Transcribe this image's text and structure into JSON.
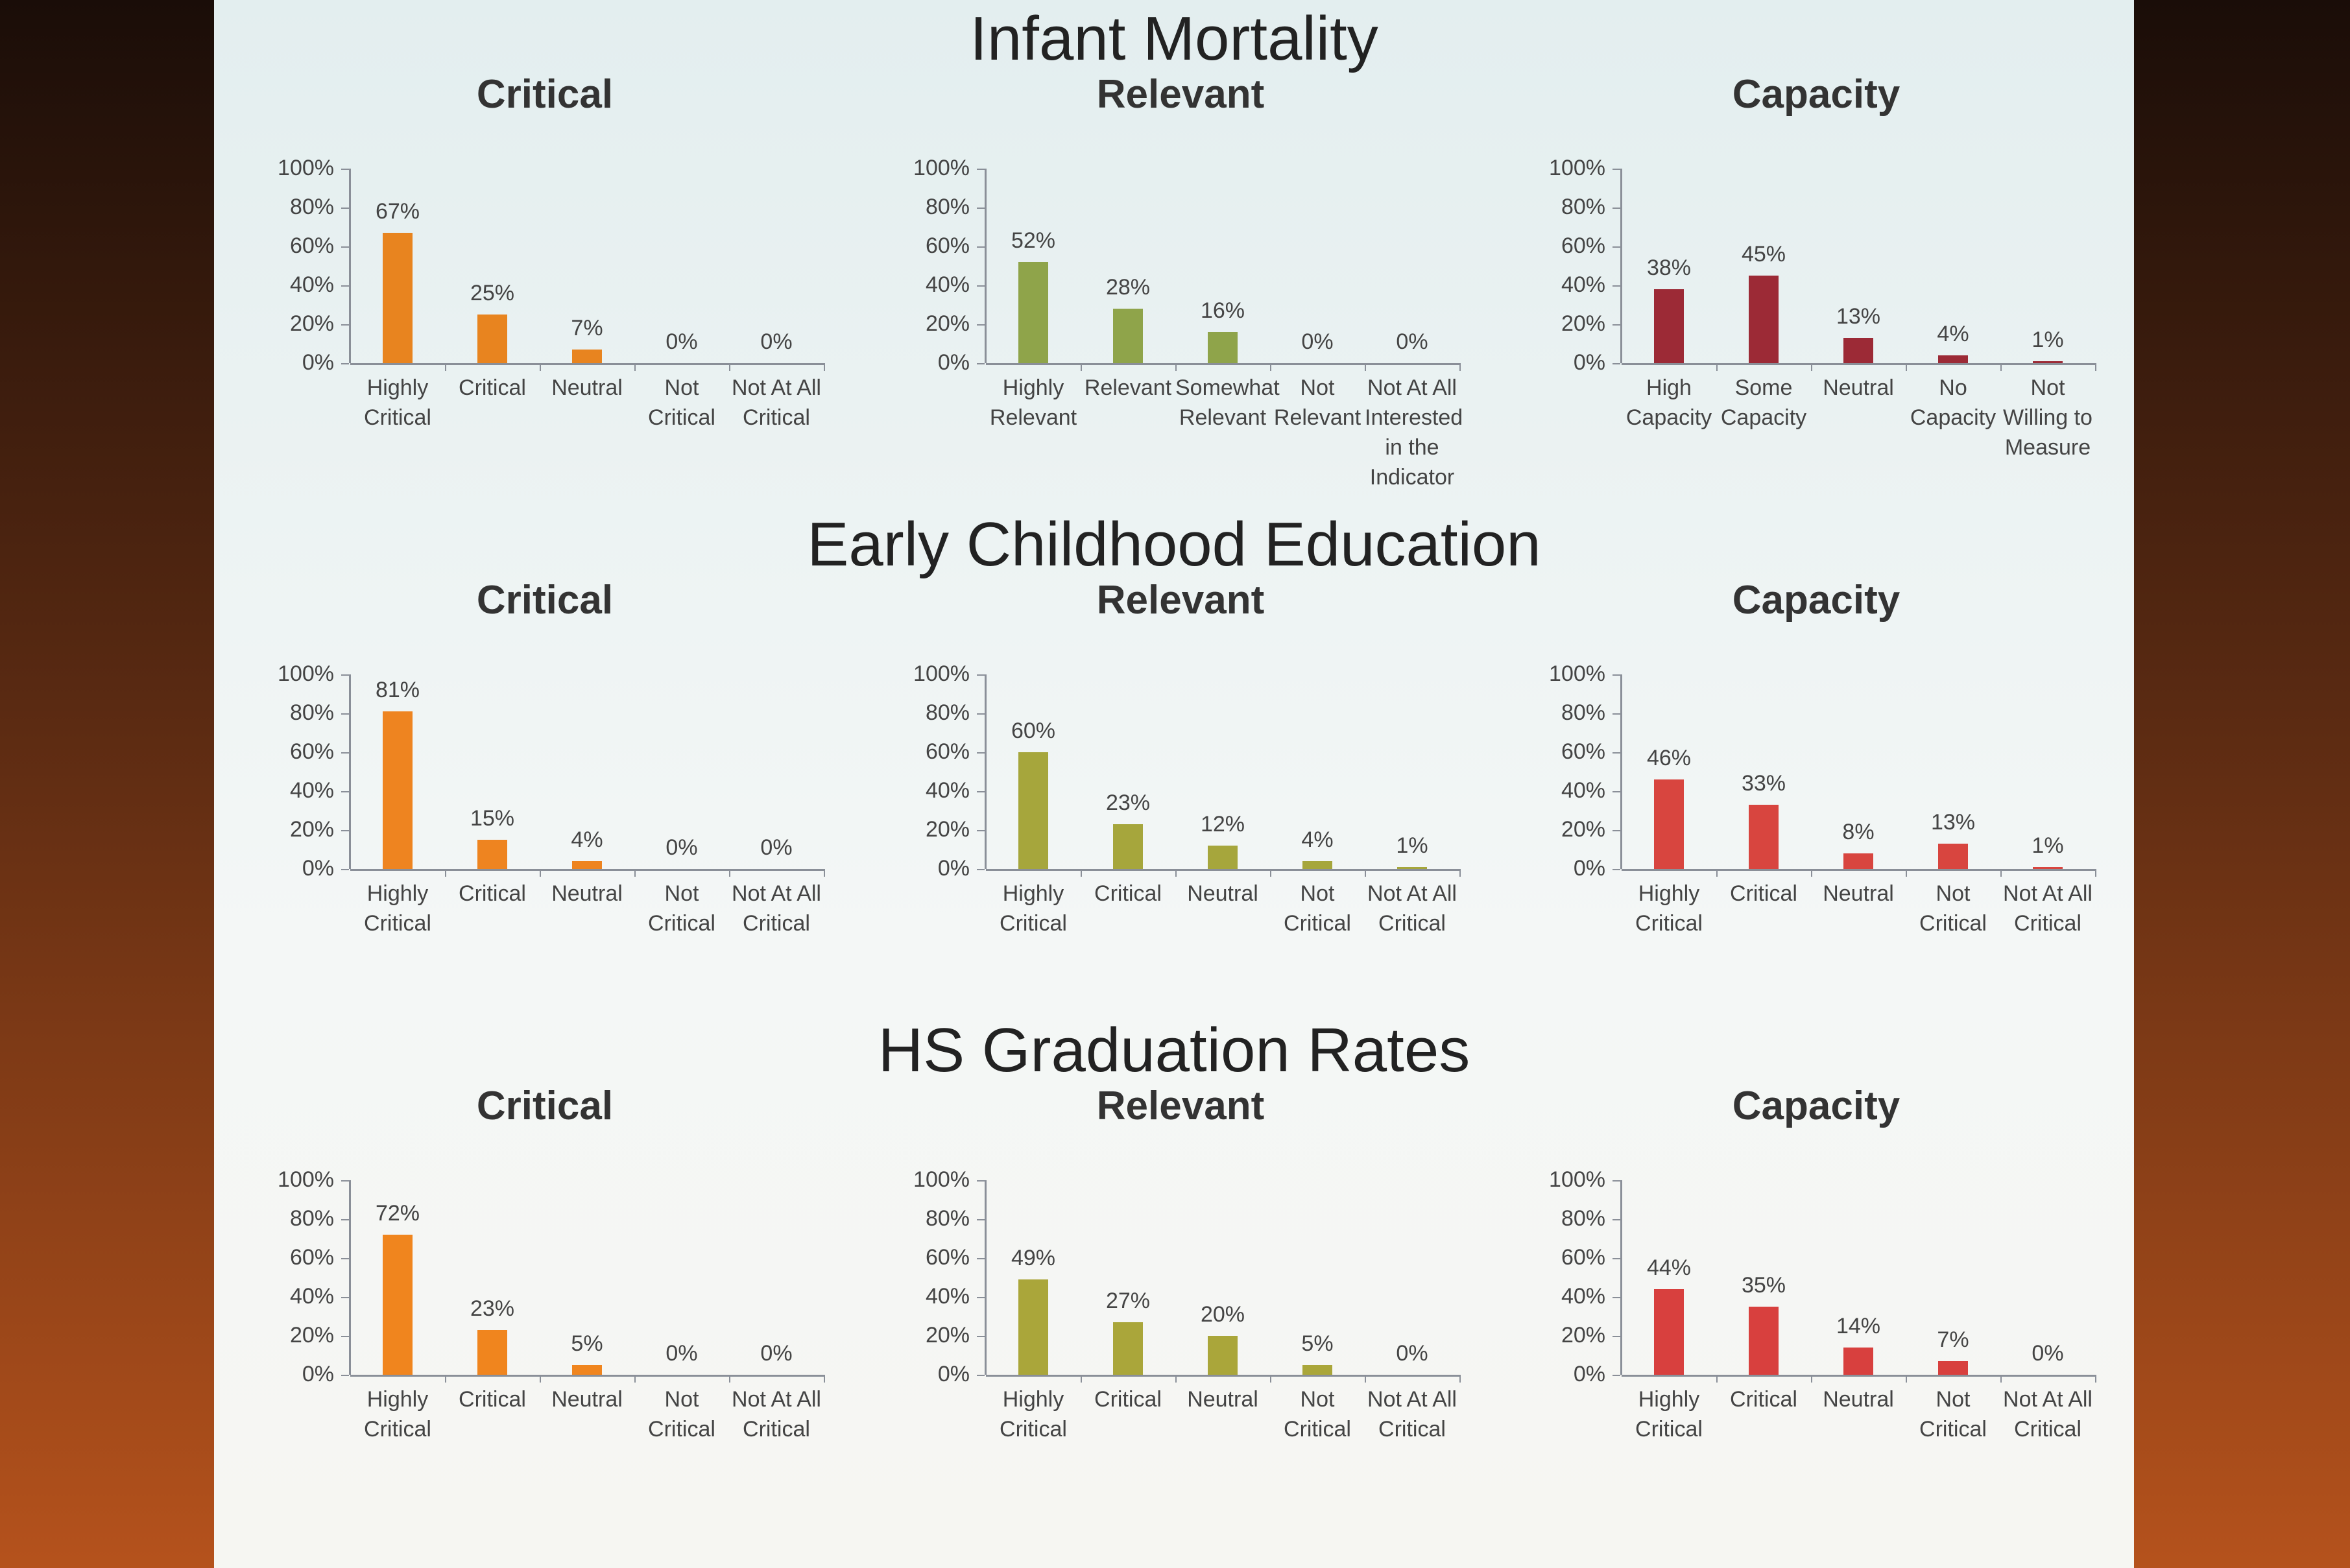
{
  "sections": [
    "Infant Mortality",
    "Early Childhood Education",
    "HS Graduation Rates"
  ],
  "chart_data": [
    {
      "type": "bar",
      "title": "Critical",
      "categories": [
        "Highly Critical",
        "Critical",
        "Neutral",
        "Not Critical",
        "Not At All Critical"
      ],
      "values": [
        67,
        25,
        7,
        0,
        0
      ],
      "value_labels": [
        "67%",
        "25%",
        "7%",
        "0%",
        "0%"
      ],
      "color": "#e8841f",
      "ylim": [
        0,
        100
      ],
      "yticks": [
        {
          "value": 0,
          "label": "0%"
        },
        {
          "value": 20,
          "label": "20%"
        },
        {
          "value": 40,
          "label": "40%"
        },
        {
          "value": 60,
          "label": "60%"
        },
        {
          "value": 80,
          "label": "80%"
        },
        {
          "value": 100,
          "label": "100%"
        }
      ]
    },
    {
      "type": "bar",
      "title": "Relevant",
      "categories": [
        "Highly Relevant",
        "Relevant",
        "Somewhat Relevant",
        "Not Relevant",
        "Not At All Interested in the Indicator"
      ],
      "values": [
        52,
        28,
        16,
        0,
        0
      ],
      "value_labels": [
        "52%",
        "28%",
        "16%",
        "0%",
        "0%"
      ],
      "color": "#8fa44a",
      "ylim": [
        0,
        100
      ],
      "yticks": [
        {
          "value": 0,
          "label": "0%"
        },
        {
          "value": 20,
          "label": "20%"
        },
        {
          "value": 40,
          "label": "40%"
        },
        {
          "value": 60,
          "label": "60%"
        },
        {
          "value": 80,
          "label": "80%"
        },
        {
          "value": 100,
          "label": "100%"
        }
      ]
    },
    {
      "type": "bar",
      "title": "Capacity",
      "categories": [
        "High Capacity",
        "Some Capacity",
        "Neutral",
        "No Capacity",
        "Not Willing to Measure"
      ],
      "values": [
        38,
        45,
        13,
        4,
        1
      ],
      "value_labels": [
        "38%",
        "45%",
        "13%",
        "4%",
        "1%"
      ],
      "color": "#9c2a36",
      "ylim": [
        0,
        100
      ],
      "yticks": [
        {
          "value": 0,
          "label": "0%"
        },
        {
          "value": 20,
          "label": "20%"
        },
        {
          "value": 40,
          "label": "40%"
        },
        {
          "value": 60,
          "label": "60%"
        },
        {
          "value": 80,
          "label": "80%"
        },
        {
          "value": 100,
          "label": "100%"
        }
      ]
    },
    {
      "type": "bar",
      "title": "Critical",
      "categories": [
        "Highly Critical",
        "Critical",
        "Neutral",
        "Not Critical",
        "Not At All Critical"
      ],
      "values": [
        81,
        15,
        4,
        0,
        0
      ],
      "value_labels": [
        "81%",
        "15%",
        "4%",
        "0%",
        "0%"
      ],
      "color": "#ee8420",
      "ylim": [
        0,
        100
      ],
      "yticks": [
        {
          "value": 0,
          "label": "0%"
        },
        {
          "value": 20,
          "label": "20%"
        },
        {
          "value": 40,
          "label": "40%"
        },
        {
          "value": 60,
          "label": "60%"
        },
        {
          "value": 80,
          "label": "80%"
        },
        {
          "value": 100,
          "label": "100%"
        }
      ]
    },
    {
      "type": "bar",
      "title": "Relevant",
      "categories": [
        "Highly Critical",
        "Critical",
        "Neutral",
        "Not Critical",
        "Not At All Critical"
      ],
      "values": [
        60,
        23,
        12,
        4,
        1
      ],
      "value_labels": [
        "60%",
        "23%",
        "12%",
        "4%",
        "1%"
      ],
      "color": "#a6a63c",
      "ylim": [
        0,
        100
      ],
      "yticks": [
        {
          "value": 0,
          "label": "0%"
        },
        {
          "value": 20,
          "label": "20%"
        },
        {
          "value": 40,
          "label": "40%"
        },
        {
          "value": 60,
          "label": "60%"
        },
        {
          "value": 80,
          "label": "80%"
        },
        {
          "value": 100,
          "label": "100%"
        }
      ]
    },
    {
      "type": "bar",
      "title": "Capacity",
      "categories": [
        "Highly Critical",
        "Critical",
        "Neutral",
        "Not Critical",
        "Not At All Critical"
      ],
      "values": [
        46,
        33,
        8,
        13,
        1
      ],
      "value_labels": [
        "46%",
        "33%",
        "8%",
        "13%",
        "1%"
      ],
      "color": "#d8453f",
      "ylim": [
        0,
        100
      ],
      "yticks": [
        {
          "value": 0,
          "label": "0%"
        },
        {
          "value": 20,
          "label": "20%"
        },
        {
          "value": 40,
          "label": "40%"
        },
        {
          "value": 60,
          "label": "60%"
        },
        {
          "value": 80,
          "label": "80%"
        },
        {
          "value": 100,
          "label": "100%"
        }
      ]
    },
    {
      "type": "bar",
      "title": "Critical",
      "categories": [
        "Highly Critical",
        "Critical",
        "Neutral",
        "Not Critical",
        "Not At All Critical"
      ],
      "values": [
        72,
        23,
        5,
        0,
        0
      ],
      "value_labels": [
        "72%",
        "23%",
        "5%",
        "0%",
        "0%"
      ],
      "color": "#f0851e",
      "ylim": [
        0,
        100
      ],
      "yticks": [
        {
          "value": 0,
          "label": "0%"
        },
        {
          "value": 20,
          "label": "20%"
        },
        {
          "value": 40,
          "label": "40%"
        },
        {
          "value": 60,
          "label": "60%"
        },
        {
          "value": 80,
          "label": "80%"
        },
        {
          "value": 100,
          "label": "100%"
        }
      ]
    },
    {
      "type": "bar",
      "title": "Relevant",
      "categories": [
        "Highly Critical",
        "Critical",
        "Neutral",
        "Not Critical",
        "Not At All Critical"
      ],
      "values": [
        49,
        27,
        20,
        5,
        0
      ],
      "value_labels": [
        "49%",
        "27%",
        "20%",
        "5%",
        "0%"
      ],
      "color": "#aaa63a",
      "ylim": [
        0,
        100
      ],
      "yticks": [
        {
          "value": 0,
          "label": "0%"
        },
        {
          "value": 20,
          "label": "20%"
        },
        {
          "value": 40,
          "label": "40%"
        },
        {
          "value": 60,
          "label": "60%"
        },
        {
          "value": 80,
          "label": "80%"
        },
        {
          "value": 100,
          "label": "100%"
        }
      ]
    },
    {
      "type": "bar",
      "title": "Capacity",
      "categories": [
        "Highly Critical",
        "Critical",
        "Neutral",
        "Not Critical",
        "Not At All Critical"
      ],
      "values": [
        44,
        35,
        14,
        7,
        0
      ],
      "value_labels": [
        "44%",
        "35%",
        "14%",
        "7%",
        "0%"
      ],
      "color": "#d8403e",
      "ylim": [
        0,
        100
      ],
      "yticks": [
        {
          "value": 0,
          "label": "0%"
        },
        {
          "value": 20,
          "label": "20%"
        },
        {
          "value": 40,
          "label": "40%"
        },
        {
          "value": 60,
          "label": "60%"
        },
        {
          "value": 80,
          "label": "80%"
        },
        {
          "value": 100,
          "label": "100%"
        }
      ]
    }
  ]
}
